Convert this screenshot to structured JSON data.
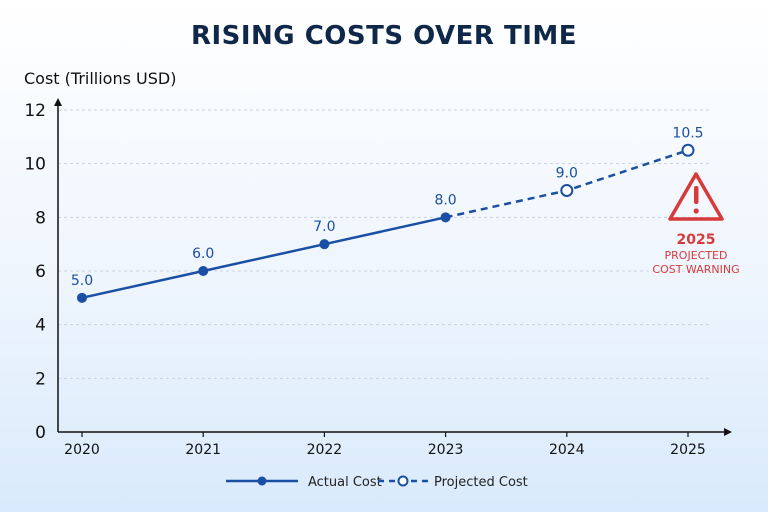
{
  "chart_data": {
    "type": "line",
    "title": "RISING COSTS OVER TIME",
    "ylabel": "Cost (Trillions USD)",
    "xlabel": "",
    "ylim": [
      0,
      12
    ],
    "yticks": [
      "0",
      "2",
      "4",
      "6",
      "8",
      "10",
      "12"
    ],
    "categories": [
      "2020",
      "2021",
      "2022",
      "2023",
      "2024",
      "2025"
    ],
    "grid": true,
    "legend_position": "bottom-center",
    "colors": {
      "line": "#1a4fa3",
      "axis": "#111111",
      "grid": "#c9d3df",
      "warning": "#d63a3a"
    },
    "series": [
      {
        "name": "Actual Cost",
        "style": "solid",
        "marker": "filled-circle",
        "x": [
          "2020",
          "2021",
          "2022",
          "2023"
        ],
        "values": [
          5.0,
          6.0,
          7.0,
          8.0
        ],
        "labels": [
          "5.0",
          "6.0",
          "7.0",
          "8.0"
        ]
      },
      {
        "name": "Projected Cost",
        "style": "dashed",
        "marker": "hollow-circle",
        "x": [
          "2023",
          "2024",
          "2025"
        ],
        "values": [
          8.0,
          9.0,
          10.5
        ],
        "labels": [
          "",
          "9.0",
          "10.5"
        ]
      }
    ],
    "annotation": {
      "icon": "warning-triangle-icon",
      "year": "2025",
      "line1": "PROJECTED",
      "line2": "COST WARNING"
    }
  }
}
